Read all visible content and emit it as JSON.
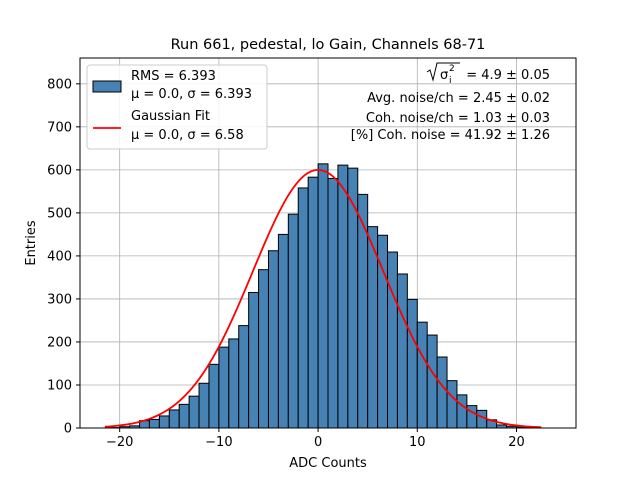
{
  "chart_data": {
    "type": "bar",
    "title": "Run 661, pedestal, lo Gain, Channels 68-71",
    "xlabel": "ADC Counts",
    "ylabel": "Entries",
    "xlim": [
      -24,
      26
    ],
    "ylim": [
      0,
      860
    ],
    "xticks": [
      -20,
      -10,
      0,
      10,
      20
    ],
    "xtick_labels": [
      "−20",
      "−10",
      "0",
      "10",
      "20"
    ],
    "yticks": [
      0,
      100,
      200,
      300,
      400,
      500,
      600,
      700,
      800
    ],
    "grid": true,
    "bin_width": 1,
    "bin_lefts": [
      -21,
      -20,
      -19,
      -18,
      -17,
      -16,
      -15,
      -14,
      -13,
      -12,
      -11,
      -10,
      -9,
      -8,
      -7,
      -6,
      -5,
      -4,
      -3,
      -2,
      -1,
      0,
      1,
      2,
      3,
      4,
      5,
      6,
      7,
      8,
      9,
      10,
      11,
      12,
      13,
      14,
      15,
      16,
      17,
      18,
      19,
      20,
      21
    ],
    "counts": [
      1,
      3,
      5,
      17,
      20,
      28,
      42,
      55,
      74,
      104,
      148,
      188,
      207,
      238,
      315,
      368,
      412,
      450,
      497,
      558,
      583,
      614,
      580,
      611,
      604,
      543,
      468,
      448,
      409,
      358,
      299,
      246,
      216,
      165,
      110,
      77,
      52,
      41,
      19,
      7,
      4,
      2,
      1
    ],
    "histogram_color": "#4682b4",
    "fit": {
      "name": "Gaussian Fit",
      "mu": 0.0,
      "sigma": 6.58,
      "amplitude": 600,
      "x_range": [
        -21.5,
        22.5
      ],
      "color": "#ff0000"
    },
    "legend": {
      "position": "top-left",
      "entries": [
        {
          "line1": "RMS = 6.393",
          "line2": "μ = 0.0, σ = 6.393"
        },
        {
          "line1": "Gaussian Fit",
          "line2": "μ = 0.0, σ = 6.58"
        }
      ]
    },
    "annotations": {
      "sigma_i_sq_value": "= 4.9 ± 0.05",
      "avg_noise": "Avg. noise/ch = 2.45 ± 0.02",
      "coh_noise": "Coh. noise/ch = 1.03 ± 0.03",
      "coh_noise_pct": "[%] Coh. noise = 41.92 ± 1.26"
    }
  }
}
